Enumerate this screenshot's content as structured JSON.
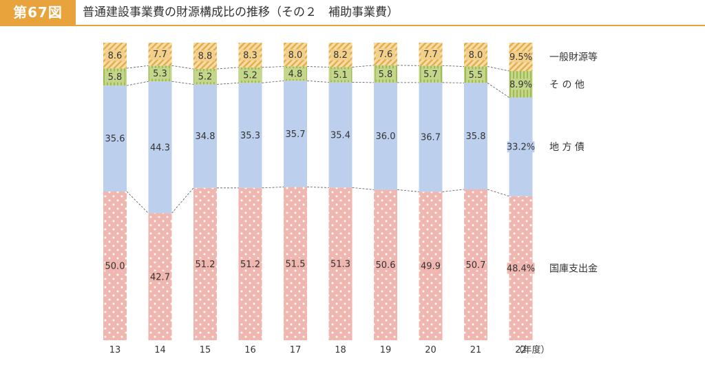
{
  "header": {
    "figure_no": "第67図",
    "title": "普通建設事業費の財源構成比の推移（その２　補助事業費）"
  },
  "chart_data": {
    "type": "bar",
    "stacked": true,
    "normalized_percent": true,
    "categories": [
      "13",
      "14",
      "15",
      "16",
      "17",
      "18",
      "19",
      "20",
      "21",
      "22"
    ],
    "x_unit_label": "（年度）",
    "series": [
      {
        "name": "国庫支出金",
        "color": "#f0b6b0",
        "pattern": "dots",
        "values": [
          50.0,
          42.7,
          51.2,
          51.2,
          51.5,
          51.3,
          50.6,
          49.9,
          50.7,
          48.4
        ],
        "labels": [
          "50.0",
          "42.7",
          "51.2",
          "51.2",
          "51.5",
          "51.3",
          "50.6",
          "49.9",
          "50.7",
          "48.4%"
        ]
      },
      {
        "name": "地 方 債",
        "color": "#bcd0ee",
        "pattern": "solid",
        "values": [
          35.6,
          44.3,
          34.8,
          35.3,
          35.7,
          35.4,
          36.0,
          36.7,
          35.8,
          33.2
        ],
        "labels": [
          "35.6",
          "44.3",
          "34.8",
          "35.3",
          "35.7",
          "35.4",
          "36.0",
          "36.7",
          "35.8",
          "33.2%"
        ]
      },
      {
        "name": "そ の 他",
        "color": "#c4d68a",
        "pattern": "vertical-stripes",
        "values": [
          5.8,
          5.3,
          5.2,
          5.2,
          4.8,
          5.1,
          5.8,
          5.7,
          5.5,
          8.9
        ],
        "labels": [
          "5.8",
          "5.3",
          "5.2",
          "5.2",
          "4.8",
          "5.1",
          "5.8",
          "5.7",
          "5.5",
          "8.9%"
        ]
      },
      {
        "name": "一般財源等",
        "color": "#f3d08a",
        "pattern": "diagonal-stripes",
        "values": [
          8.6,
          7.7,
          8.8,
          8.3,
          8.0,
          8.2,
          7.6,
          7.7,
          8.0,
          9.5
        ],
        "labels": [
          "8.6",
          "7.7",
          "8.8",
          "8.3",
          "8.0",
          "8.2",
          "7.6",
          "7.7",
          "8.0",
          "9.5%"
        ]
      }
    ],
    "connector_lines": "dashed",
    "legend_placement": "right",
    "grid": false
  }
}
